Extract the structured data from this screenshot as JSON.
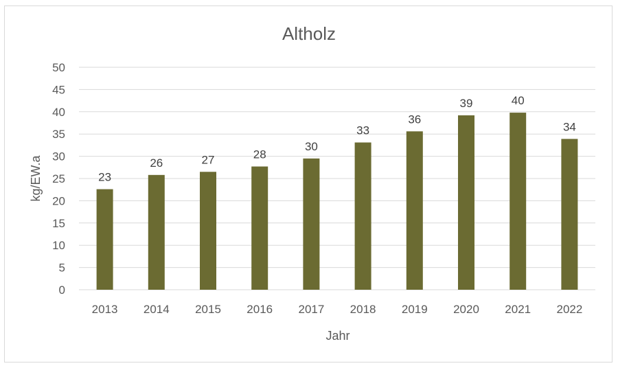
{
  "chart_data": {
    "type": "bar",
    "title": "Altholz",
    "xlabel": "Jahr",
    "ylabel": "kg/EW.a",
    "categories": [
      "2013",
      "2014",
      "2015",
      "2016",
      "2017",
      "2018",
      "2019",
      "2020",
      "2021",
      "2022"
    ],
    "values": [
      22.6,
      25.8,
      26.5,
      27.7,
      29.5,
      33.1,
      35.6,
      39.2,
      39.8,
      33.9
    ],
    "data_labels": [
      "23",
      "26",
      "27",
      "28",
      "30",
      "33",
      "36",
      "39",
      "40",
      "34"
    ],
    "ylim": [
      0,
      50
    ],
    "yticks": [
      "0",
      "5",
      "10",
      "15",
      "20",
      "25",
      "30",
      "35",
      "40",
      "45",
      "50"
    ],
    "grid": true,
    "legend": "none",
    "bar_color": "#6b6b32",
    "grid_color": "#d9d9d9"
  }
}
